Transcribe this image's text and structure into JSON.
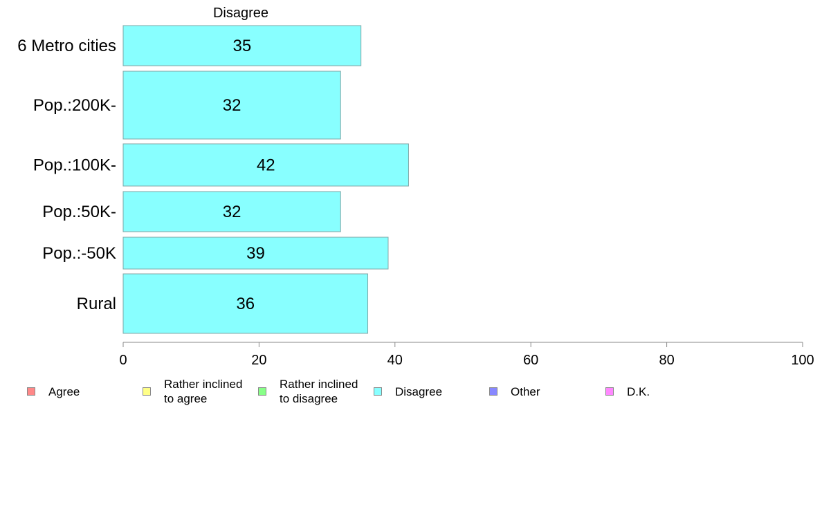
{
  "chart_data": {
    "type": "bar",
    "orientation": "horizontal",
    "title": "Disagree",
    "categories": [
      "6 Metro cities",
      "Pop.:200K-",
      "Pop.:100K-",
      "Pop.:50K-",
      "Pop.:-50K",
      "Rural"
    ],
    "series": [
      {
        "name": "Disagree",
        "values": [
          35,
          32,
          42,
          32,
          39,
          36
        ],
        "color": "#88ffff"
      }
    ],
    "data_labels": [
      "35",
      "32",
      "42",
      "32",
      "39",
      "36"
    ],
    "xlim": [
      0,
      100
    ],
    "x_ticks": [
      0,
      20,
      40,
      60,
      80,
      100
    ],
    "x_tick_labels": [
      "0",
      "20",
      "40",
      "60",
      "80",
      "100"
    ],
    "grid": false,
    "legend_position": "bottom",
    "legend": [
      {
        "label": "Agree",
        "color": "#ff8888"
      },
      {
        "label": "Rather inclined\nto agree",
        "color": "#ffff88"
      },
      {
        "label": "Rather inclined\nto disagree",
        "color": "#88ff88"
      },
      {
        "label": "Disagree",
        "color": "#88ffff"
      },
      {
        "label": "Other",
        "color": "#8888ff"
      },
      {
        "label": "D.K.",
        "color": "#ff88ff"
      }
    ]
  }
}
